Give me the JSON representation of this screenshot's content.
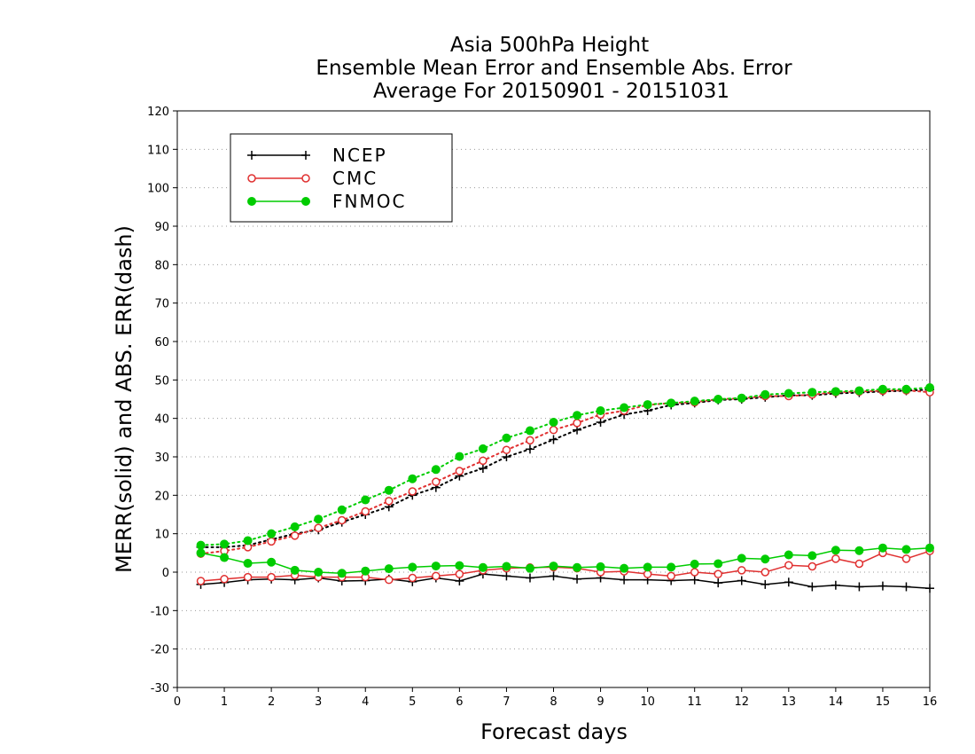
{
  "chart_data": {
    "type": "line",
    "title_lines": [
      "Asia 500hPa Height",
      "Ensemble Mean Error and Ensemble Abs. Error",
      "Average For 20150901 - 20151031"
    ],
    "xlabel": "Forecast days",
    "ylabel": "MERR(solid) and ABS. ERR(dash)",
    "xlim": [
      0,
      16
    ],
    "ylim": [
      -30,
      120
    ],
    "xticks": [
      0,
      1,
      2,
      3,
      4,
      5,
      6,
      7,
      8,
      9,
      10,
      11,
      12,
      13,
      14,
      15,
      16
    ],
    "yticks": [
      -30,
      -20,
      -10,
      0,
      10,
      20,
      30,
      40,
      50,
      60,
      70,
      80,
      90,
      100,
      110,
      120
    ],
    "grid": "horizontal-dotted",
    "legend_position": "top-left",
    "x": [
      0.5,
      1,
      1.5,
      2,
      2.5,
      3,
      3.5,
      4,
      4.5,
      5,
      5.5,
      6,
      6.5,
      7,
      7.5,
      8,
      8.5,
      9,
      9.5,
      10,
      10.5,
      11,
      11.5,
      12,
      12.5,
      13,
      13.5,
      14,
      14.5,
      15,
      15.5,
      16
    ],
    "series": [
      {
        "name": "NCEP",
        "color": "#000000",
        "marker": "plus",
        "merr": [
          -3.2,
          -2.7,
          -2.0,
          -1.8,
          -2.0,
          -1.5,
          -2.3,
          -2.2,
          -1.8,
          -2.5,
          -1.5,
          -2.3,
          -0.5,
          -1.0,
          -1.5,
          -1.0,
          -1.8,
          -1.5,
          -2.0,
          -2.0,
          -2.2,
          -2.0,
          -2.8,
          -2.2,
          -3.2,
          -2.6,
          -3.8,
          -3.4,
          -3.8,
          -3.6,
          -3.8,
          -4.2
        ],
        "abs_err": [
          6.5,
          6.5,
          7.0,
          8.5,
          10.0,
          11.0,
          13.0,
          15.0,
          17.0,
          20.0,
          22.0,
          25.0,
          27.0,
          30.0,
          32.0,
          34.5,
          37.0,
          39.0,
          41.0,
          42.0,
          43.5,
          44.0,
          44.8,
          45.0,
          45.5,
          46.0,
          46.0,
          46.5,
          46.7,
          47.0,
          47.2,
          47.5
        ]
      },
      {
        "name": "CMC",
        "color": "#e03030",
        "marker": "open-circle",
        "merr": [
          -2.3,
          -1.8,
          -1.3,
          -1.3,
          -0.8,
          -1.3,
          -1.3,
          -1.3,
          -2.0,
          -1.5,
          -1.0,
          -0.5,
          0.5,
          1.0,
          1.2,
          1.3,
          1.0,
          0.0,
          0.2,
          -0.5,
          -1.0,
          0.0,
          -0.5,
          0.5,
          0.0,
          1.8,
          1.5,
          3.5,
          2.2,
          5.0,
          3.5,
          5.5
        ],
        "abs_err": [
          4.8,
          5.5,
          6.5,
          8.0,
          9.5,
          11.5,
          13.5,
          15.8,
          18.5,
          21.0,
          23.5,
          26.3,
          29.0,
          31.8,
          34.3,
          37.0,
          38.8,
          41.0,
          42.0,
          43.5,
          44.0,
          44.2,
          45.0,
          45.2,
          45.8,
          45.8,
          46.2,
          46.8,
          47.0,
          47.2,
          47.3,
          46.8
        ]
      },
      {
        "name": "FNMOC",
        "color": "#00cc00",
        "marker": "filled-circle",
        "merr": [
          5.0,
          3.8,
          2.3,
          2.6,
          0.5,
          0.0,
          -0.3,
          0.3,
          0.9,
          1.3,
          1.6,
          1.7,
          1.2,
          1.5,
          1.0,
          1.6,
          1.2,
          1.4,
          1.0,
          1.3,
          1.3,
          2.1,
          2.2,
          3.6,
          3.4,
          4.5,
          4.3,
          5.7,
          5.6,
          6.3,
          5.9,
          6.3
        ],
        "abs_err": [
          7.0,
          7.3,
          8.2,
          10.0,
          11.8,
          13.8,
          16.2,
          18.8,
          21.3,
          24.3,
          26.7,
          30.1,
          32.1,
          34.9,
          36.8,
          39.0,
          40.8,
          42.0,
          42.8,
          43.6,
          44.0,
          44.5,
          45.0,
          45.3,
          46.2,
          46.5,
          46.8,
          47.0,
          47.2,
          47.6,
          47.6,
          48.0
        ]
      }
    ]
  }
}
